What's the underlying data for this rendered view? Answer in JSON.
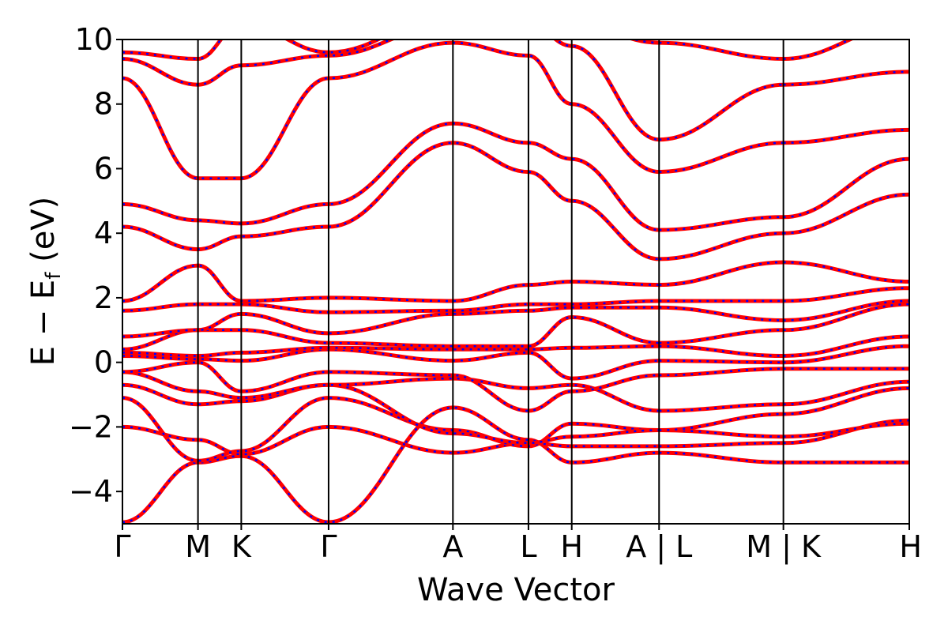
{
  "chart_data": {
    "type": "line",
    "title": "",
    "xlabel": "Wave Vector",
    "ylabel": "E − E_f (eV)",
    "ylabel_parts": {
      "main": "E − E",
      "sub": "f",
      "unit": " (eV)"
    },
    "ylim": [
      -5,
      10
    ],
    "yticks": [
      -4,
      -2,
      0,
      2,
      4,
      6,
      8,
      10
    ],
    "ytick_labels": [
      "−4",
      "−2",
      "0",
      "2",
      "4",
      "6",
      "8",
      "10"
    ],
    "k_path": [
      {
        "label": "Γ",
        "k": 0.0
      },
      {
        "label": "M",
        "k": 0.096
      },
      {
        "label": "K",
        "k": 0.151
      },
      {
        "label": "Γ",
        "k": 0.262
      },
      {
        "label": "A",
        "k": 0.42
      },
      {
        "label": "L",
        "k": 0.516
      },
      {
        "label": "H",
        "k": 0.571
      },
      {
        "label": "A | L",
        "k": 0.682
      },
      {
        "label": "M | K",
        "k": 0.84
      },
      {
        "label": "H",
        "k": 1.0
      }
    ],
    "segment_breaks": [
      0.682,
      0.84
    ],
    "series": [
      {
        "color": "#ff0000",
        "style": "solid"
      },
      {
        "color": "#0000ff",
        "style": "dotted"
      }
    ],
    "bands": [
      [
        -4.95,
        -3.1,
        -2.9,
        -4.95,
        -1.4,
        -2.4,
        -3.1,
        -2.8,
        -3.1,
        -3.1
      ],
      [
        -2.0,
        -2.4,
        -2.85,
        -2.0,
        -2.8,
        -2.5,
        -2.6,
        -2.6,
        -2.5,
        -1.8
      ],
      [
        -1.1,
        -3.05,
        -2.75,
        -1.1,
        -2.1,
        -2.6,
        -1.9,
        -2.1,
        -2.3,
        -1.9
      ],
      [
        -0.7,
        -1.3,
        -1.2,
        -0.7,
        -2.2,
        -2.5,
        -2.3,
        -2.1,
        -1.6,
        -0.8
      ],
      [
        -0.3,
        -0.9,
        -1.1,
        -0.7,
        -0.5,
        -0.8,
        -0.7,
        -1.5,
        -1.3,
        -0.6
      ],
      [
        -0.3,
        0.0,
        -0.9,
        -0.3,
        -0.4,
        -1.5,
        -0.9,
        -0.4,
        -0.2,
        -0.2
      ],
      [
        0.2,
        0.1,
        0.05,
        0.4,
        0.05,
        0.3,
        -0.5,
        0.05,
        0.0,
        0.5
      ],
      [
        0.3,
        0.2,
        0.3,
        0.45,
        0.4,
        0.4,
        0.45,
        0.5,
        0.2,
        0.8
      ],
      [
        0.4,
        1.0,
        1.0,
        0.6,
        0.5,
        0.5,
        1.4,
        0.6,
        1.0,
        1.8
      ],
      [
        0.8,
        1.0,
        1.5,
        0.9,
        1.5,
        1.6,
        1.7,
        1.7,
        1.3,
        1.9
      ],
      [
        1.6,
        1.8,
        1.8,
        1.55,
        1.6,
        1.8,
        1.8,
        1.9,
        1.9,
        2.3
      ],
      [
        1.9,
        3.0,
        1.9,
        2.0,
        1.9,
        2.4,
        2.5,
        2.4,
        3.1,
        2.5
      ],
      [
        4.2,
        3.5,
        3.9,
        4.2,
        6.8,
        5.9,
        5.0,
        3.2,
        4.0,
        5.2
      ],
      [
        4.9,
        4.4,
        4.3,
        4.9,
        7.4,
        6.8,
        6.3,
        4.1,
        4.5,
        6.3
      ],
      [
        8.8,
        5.7,
        5.7,
        8.8,
        9.9,
        9.5,
        8.0,
        5.9,
        6.8,
        7.2
      ],
      [
        9.4,
        8.6,
        9.2,
        9.5,
        10.5,
        10.5,
        9.8,
        6.9,
        8.6,
        9.0
      ],
      [
        9.6,
        9.4,
        10.5,
        9.6,
        10.8,
        10.8,
        10.5,
        9.9,
        9.4,
        10.5
      ]
    ]
  }
}
